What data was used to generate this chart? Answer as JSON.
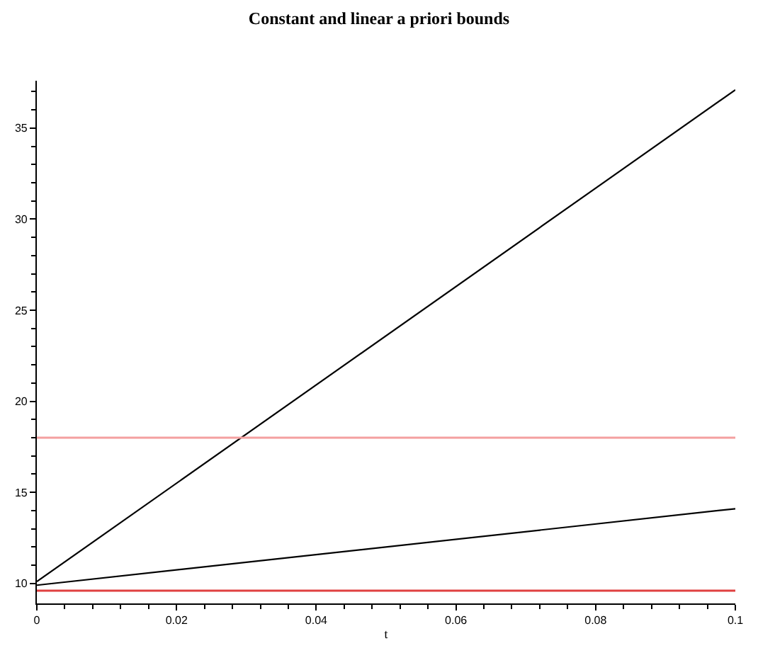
{
  "chart_data": {
    "type": "line",
    "title": "Constant and linear a priori bounds",
    "xlabel": "t",
    "x": [
      0,
      0.1
    ],
    "xlim": [
      0,
      0.1
    ],
    "ylim": [
      8.9,
      37.6
    ],
    "xticks": [
      0,
      {
        "value": 0.004,
        "label": null
      },
      {
        "value": 0.008,
        "label": null
      },
      {
        "value": 0.012,
        "label": null
      },
      {
        "value": 0.016,
        "label": null
      },
      0.02,
      {
        "value": 0.024,
        "label": null
      },
      {
        "value": 0.028,
        "label": null
      },
      {
        "value": 0.032,
        "label": null
      },
      {
        "value": 0.036,
        "label": null
      },
      0.04,
      {
        "value": 0.044,
        "label": null
      },
      {
        "value": 0.048,
        "label": null
      },
      {
        "value": 0.052,
        "label": null
      },
      {
        "value": 0.056,
        "label": null
      },
      0.06,
      {
        "value": 0.064,
        "label": null
      },
      {
        "value": 0.068,
        "label": null
      },
      {
        "value": 0.072,
        "label": null
      },
      {
        "value": 0.076,
        "label": null
      },
      0.08,
      {
        "value": 0.084,
        "label": null
      },
      {
        "value": 0.088,
        "label": null
      },
      {
        "value": 0.092,
        "label": null
      },
      {
        "value": 0.096,
        "label": null
      },
      0.1
    ],
    "yticks": [
      10,
      {
        "value": 11,
        "label": null
      },
      {
        "value": 12,
        "label": null
      },
      {
        "value": 13,
        "label": null
      },
      {
        "value": 14,
        "label": null
      },
      15,
      {
        "value": 16,
        "label": null
      },
      {
        "value": 17,
        "label": null
      },
      {
        "value": 18,
        "label": null
      },
      {
        "value": 19,
        "label": null
      },
      20,
      {
        "value": 21,
        "label": null
      },
      {
        "value": 22,
        "label": null
      },
      {
        "value": 23,
        "label": null
      },
      {
        "value": 24,
        "label": null
      },
      25,
      {
        "value": 26,
        "label": null
      },
      {
        "value": 27,
        "label": null
      },
      {
        "value": 28,
        "label": null
      },
      {
        "value": 29,
        "label": null
      },
      30,
      {
        "value": 31,
        "label": null
      },
      {
        "value": 32,
        "label": null
      },
      {
        "value": 33,
        "label": null
      },
      {
        "value": 34,
        "label": null
      },
      35,
      {
        "value": 36,
        "label": null
      },
      {
        "value": 37,
        "label": null
      }
    ],
    "series": [
      {
        "color": "#000000",
        "values": [
          10.1,
          37.1
        ]
      },
      {
        "color": "#000000",
        "values": [
          9.9,
          14.1
        ]
      }
    ],
    "ref_lines": [
      {
        "axis": "y",
        "value": 18,
        "color": "#f4a0a0"
      },
      {
        "axis": "y",
        "value": 9.6,
        "color": "#e04040"
      }
    ]
  }
}
